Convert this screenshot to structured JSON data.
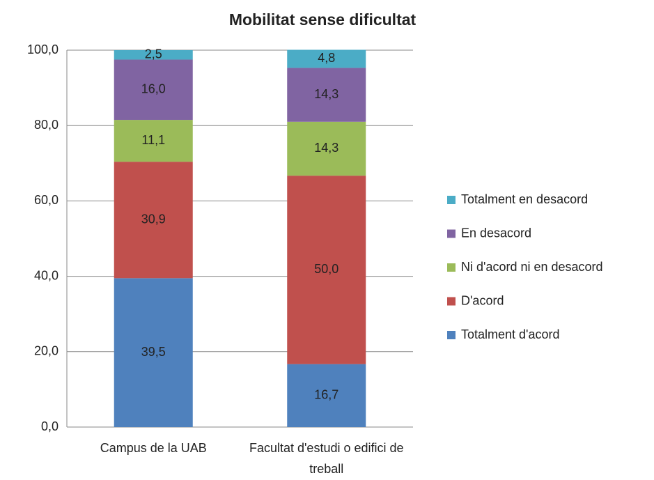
{
  "chart_data": {
    "type": "stacked_bar",
    "title": "Mobilitat sense dificultat",
    "categories": [
      "Campus de la UAB",
      "Facultat d'estudi o edifici de treball"
    ],
    "series": [
      {
        "name": "Totalment d'acord",
        "color": "#4f81bd",
        "values": [
          39.5,
          16.7
        ],
        "value_labels": [
          "39,5",
          "16,7"
        ]
      },
      {
        "name": "D'acord",
        "color": "#c0504d",
        "values": [
          30.9,
          50.0
        ],
        "value_labels": [
          "30,9",
          "50,0"
        ]
      },
      {
        "name": "Ni d'acord ni en desacord",
        "color": "#9bbb59",
        "values": [
          11.1,
          14.3
        ],
        "value_labels": [
          "11,1",
          "14,3"
        ]
      },
      {
        "name": "En desacord",
        "color": "#8064a2",
        "values": [
          16.0,
          14.3
        ],
        "value_labels": [
          "16,0",
          "14,3"
        ]
      },
      {
        "name": "Totalment en desacord",
        "color": "#4bacc6",
        "values": [
          2.5,
          4.8
        ],
        "value_labels": [
          "2,5",
          "4,8"
        ]
      }
    ],
    "ylim": [
      0,
      100
    ],
    "yticks": [
      {
        "value": 0,
        "label": "0,0"
      },
      {
        "value": 20,
        "label": "20,0"
      },
      {
        "value": 40,
        "label": "40,0"
      },
      {
        "value": 60,
        "label": "60,0"
      },
      {
        "value": 80,
        "label": "80,0"
      },
      {
        "value": 100,
        "label": "100,0"
      }
    ],
    "grid": true,
    "legend": "right"
  }
}
